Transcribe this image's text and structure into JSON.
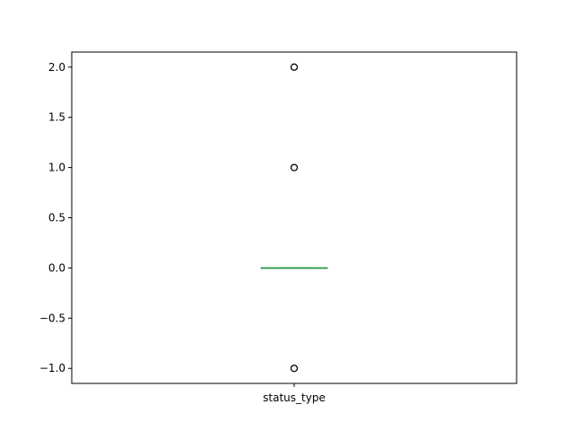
{
  "chart_data": {
    "type": "box",
    "title": "",
    "xlabel": "",
    "ylabel": "",
    "categories": [
      "status_type"
    ],
    "series": [
      {
        "q1": 0,
        "median": 0,
        "q3": 0,
        "whisker_low": 0,
        "whisker_high": 0,
        "outliers": [
          -1,
          1,
          2
        ]
      }
    ],
    "ylim": [
      -1.15,
      2.15
    ],
    "yticks": [
      -1.0,
      -0.5,
      0.0,
      0.5,
      1.0,
      1.5,
      2.0
    ],
    "ytick_labels": [
      "−1.0",
      "−0.5",
      "0.0",
      "0.5",
      "1.0",
      "1.5",
      "2.0"
    ],
    "grid": false,
    "colors": {
      "box": "#1f77b4",
      "median": "#2ca02c",
      "whisker": "#1f77b4",
      "outlier": "#000000"
    }
  }
}
